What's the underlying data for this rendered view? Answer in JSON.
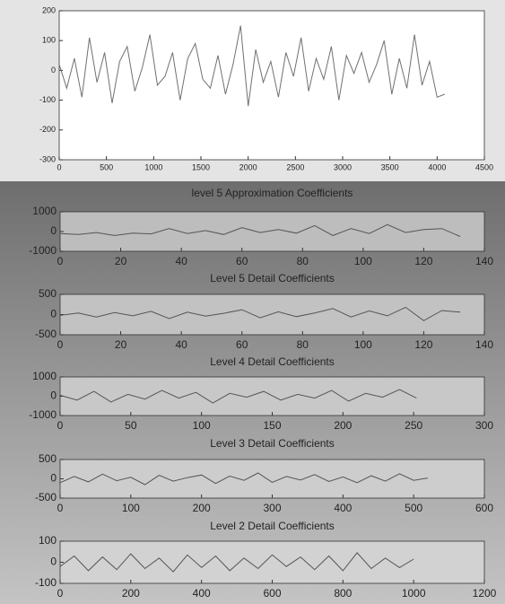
{
  "chart_data": [
    {
      "type": "line",
      "xlim": [
        0,
        4500
      ],
      "xticks": [
        0,
        500,
        1000,
        1500,
        2000,
        2500,
        3000,
        3500,
        4000,
        4500
      ],
      "ylim": [
        -300,
        200
      ],
      "yticks": [
        -300,
        -200,
        -100,
        0,
        100,
        200
      ],
      "x": [
        0,
        80,
        160,
        240,
        320,
        400,
        480,
        560,
        640,
        720,
        800,
        880,
        960,
        1040,
        1120,
        1200,
        1280,
        1360,
        1440,
        1520,
        1600,
        1680,
        1760,
        1840,
        1920,
        2000,
        2080,
        2160,
        2240,
        2320,
        2400,
        2480,
        2560,
        2640,
        2720,
        2800,
        2880,
        2960,
        3040,
        3120,
        3200,
        3280,
        3360,
        3440,
        3520,
        3600,
        3680,
        3760,
        3840,
        3920,
        4000,
        4080
      ],
      "series": [
        {
          "color": "#707070",
          "values": [
            20,
            -60,
            40,
            -90,
            110,
            -40,
            60,
            -110,
            30,
            80,
            -70,
            10,
            120,
            -50,
            -20,
            60,
            -100,
            40,
            90,
            -30,
            -60,
            50,
            -80,
            20,
            150,
            -120,
            70,
            -40,
            30,
            -90,
            60,
            -20,
            110,
            -70,
            40,
            -30,
            80,
            -100,
            50,
            -10,
            60,
            -40,
            20,
            100,
            -80,
            40,
            -60,
            120,
            -50,
            30,
            -90,
            -80
          ]
        }
      ]
    },
    {
      "type": "line",
      "title": "level 5 Approximation Coefficients",
      "xlim": [
        0,
        140
      ],
      "xticks": [
        0,
        20,
        40,
        60,
        80,
        100,
        120,
        140
      ],
      "ylim": [
        -1000,
        1000
      ],
      "yticks": [
        -1000,
        0,
        1000
      ],
      "x": [
        0,
        6,
        12,
        18,
        24,
        30,
        36,
        42,
        48,
        54,
        60,
        66,
        72,
        78,
        84,
        90,
        96,
        102,
        108,
        114,
        120,
        126,
        132
      ],
      "series": [
        {
          "color": "#555555",
          "values": [
            -100,
            -150,
            -50,
            -200,
            -80,
            -120,
            150,
            -100,
            50,
            -150,
            200,
            -50,
            100,
            -80,
            300,
            -200,
            150,
            -100,
            350,
            -50,
            100,
            150,
            -250
          ]
        }
      ]
    },
    {
      "type": "line",
      "title": "Level 5 Detail Coefficients",
      "xlim": [
        0,
        140
      ],
      "xticks": [
        0,
        20,
        40,
        60,
        80,
        100,
        120,
        140
      ],
      "ylim": [
        -500,
        500
      ],
      "yticks": [
        -500,
        0,
        500
      ],
      "x": [
        0,
        6,
        12,
        18,
        24,
        30,
        36,
        42,
        48,
        54,
        60,
        66,
        72,
        78,
        84,
        90,
        96,
        102,
        108,
        114,
        120,
        126,
        132
      ],
      "series": [
        {
          "color": "#555555",
          "values": [
            -20,
            40,
            -60,
            50,
            -30,
            80,
            -100,
            60,
            -40,
            30,
            120,
            -80,
            70,
            -50,
            40,
            150,
            -60,
            90,
            -30,
            180,
            -150,
            100,
            60
          ]
        }
      ]
    },
    {
      "type": "line",
      "title": "Level 4 Detail Coefficients",
      "xlim": [
        0,
        300
      ],
      "xticks": [
        0,
        50,
        100,
        150,
        200,
        250,
        300
      ],
      "ylim": [
        -1000,
        1000
      ],
      "yticks": [
        -1000,
        0,
        1000
      ],
      "x": [
        0,
        12,
        24,
        36,
        48,
        60,
        72,
        84,
        96,
        108,
        120,
        132,
        144,
        156,
        168,
        180,
        192,
        204,
        216,
        228,
        240,
        252
      ],
      "series": [
        {
          "color": "#555555",
          "values": [
            50,
            -200,
            250,
            -300,
            100,
            -150,
            300,
            -100,
            200,
            -350,
            150,
            -50,
            250,
            -200,
            100,
            -100,
            300,
            -250,
            150,
            -50,
            350,
            -100
          ]
        }
      ]
    },
    {
      "type": "line",
      "title": "Level 3 Detail Coefficients",
      "xlim": [
        0,
        600
      ],
      "xticks": [
        0,
        100,
        200,
        300,
        400,
        500,
        600
      ],
      "ylim": [
        -500,
        500
      ],
      "yticks": [
        -500,
        0,
        500
      ],
      "x": [
        0,
        20,
        40,
        60,
        80,
        100,
        120,
        140,
        160,
        180,
        200,
        220,
        240,
        260,
        280,
        300,
        320,
        340,
        360,
        380,
        400,
        420,
        440,
        460,
        480,
        500,
        520
      ],
      "series": [
        {
          "color": "#555555",
          "values": [
            -100,
            60,
            -80,
            120,
            -50,
            40,
            -150,
            90,
            -60,
            30,
            100,
            -120,
            70,
            -40,
            150,
            -90,
            60,
            -30,
            110,
            -70,
            50,
            -100,
            80,
            -60,
            130,
            -40,
            20
          ]
        }
      ]
    },
    {
      "type": "line",
      "title": "Level 2 Detail Coefficients",
      "xlim": [
        0,
        1200
      ],
      "xticks": [
        0,
        200,
        400,
        600,
        800,
        1000,
        1200
      ],
      "ylim": [
        -100,
        100
      ],
      "yticks": [
        -100,
        0,
        100
      ],
      "x": [
        0,
        40,
        80,
        120,
        160,
        200,
        240,
        280,
        320,
        360,
        400,
        440,
        480,
        520,
        560,
        600,
        640,
        680,
        720,
        760,
        800,
        840,
        880,
        920,
        960,
        1000
      ],
      "series": [
        {
          "color": "#555555",
          "values": [
            -20,
            30,
            -40,
            25,
            -35,
            40,
            -30,
            20,
            -45,
            35,
            -25,
            30,
            -40,
            20,
            -30,
            35,
            -20,
            25,
            -35,
            30,
            -40,
            45,
            -30,
            20,
            -25,
            15
          ]
        }
      ]
    }
  ]
}
